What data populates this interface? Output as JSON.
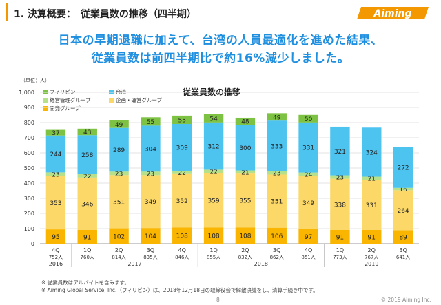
{
  "header": {
    "title": "1. 決算概要：　従業員数の推移（四半期）",
    "logo_text": "Aiming"
  },
  "headline": {
    "line1": "日本の早期退職に加えて、台湾の人員最適化を進めた結果、",
    "line2": "従業員数は前四半期比で約16%減少しました。"
  },
  "unit_label": "（単位：人）",
  "legend": [
    {
      "label": "フィリピン",
      "color": "#7dc242"
    },
    {
      "label": "台湾",
      "color": "#4dc3f0"
    },
    {
      "label": "経営管理グループ",
      "color": "#b7e08a"
    },
    {
      "label": "企画・運営グループ",
      "color": "#fbd868"
    },
    {
      "label": "開発グループ",
      "color": "#f9b500"
    }
  ],
  "chart_data": {
    "type": "bar",
    "stacked": true,
    "title": "従業員数の推移",
    "ylim": [
      0,
      1000
    ],
    "yticks": [
      "0",
      "100",
      "200",
      "300",
      "400",
      "500",
      "600",
      "700",
      "800",
      "900",
      "1,000"
    ],
    "categories": [
      "4Q",
      "1Q",
      "2Q",
      "3Q",
      "4Q",
      "1Q",
      "2Q",
      "3Q",
      "4Q",
      "1Q",
      "2Q",
      "3Q"
    ],
    "totals": [
      "752人",
      "760人",
      "814人",
      "835人",
      "846人",
      "855人",
      "832人",
      "862人",
      "851人",
      "773人",
      "767人",
      "641人"
    ],
    "years": [
      {
        "label": "2016",
        "from": 0,
        "to": 0
      },
      {
        "label": "2017",
        "from": 1,
        "to": 4
      },
      {
        "label": "2018",
        "from": 5,
        "to": 8
      },
      {
        "label": "2019",
        "from": 9,
        "to": 11
      }
    ],
    "series": [
      {
        "name": "開発グループ",
        "color": "#f9b500",
        "values": [
          95,
          91,
          102,
          104,
          108,
          108,
          108,
          106,
          97,
          91,
          91,
          89
        ]
      },
      {
        "name": "企画・運営グループ",
        "color": "#fbd868",
        "values": [
          353,
          346,
          351,
          349,
          352,
          359,
          355,
          351,
          349,
          338,
          331,
          264
        ]
      },
      {
        "name": "経営管理グループ",
        "color": "#b7e08a",
        "values": [
          23,
          22,
          23,
          23,
          22,
          22,
          21,
          23,
          24,
          23,
          21,
          16
        ]
      },
      {
        "name": "台湾",
        "color": "#4dc3f0",
        "values": [
          244,
          258,
          289,
          304,
          309,
          312,
          300,
          333,
          331,
          321,
          324,
          272
        ]
      },
      {
        "name": "フィリピン",
        "color": "#7dc242",
        "values": [
          37,
          43,
          49,
          55,
          55,
          54,
          48,
          49,
          50,
          null,
          null,
          null
        ]
      }
    ],
    "grid": true,
    "legend_position": "top-left"
  },
  "notes": [
    "※ 従業員数はアルバイトを含みます。",
    "※ Aiming Global Service, Inc.（フィリピン）は、2018年12月18日の取締役会で解散決議をし、清算手続き中です。"
  ],
  "footer": {
    "page": "8",
    "copyright": "© 2019 Aiming Inc."
  }
}
